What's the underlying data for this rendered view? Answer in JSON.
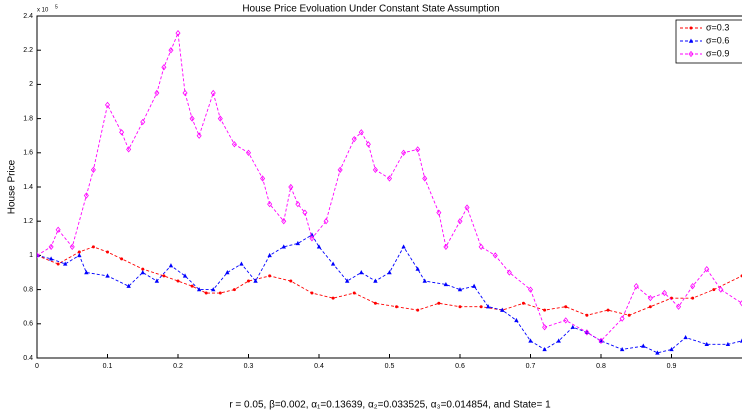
{
  "chart_data": {
    "type": "line",
    "title": "House Price Evoluation Under Constant State Assumption",
    "ylabel": "House Price",
    "xlabel": "r = 0.05, β=0.002, α₁=0.13639, α₂=0.033525, α₃=0.014854, and State= 1",
    "y_scale": {
      "base": "x 10",
      "exponent": "5"
    },
    "xlim": [
      0,
      1
    ],
    "xticks": [
      0,
      0.1,
      0.2,
      0.3,
      0.4,
      0.5,
      0.6,
      0.7,
      0.8,
      0.9
    ],
    "ylim": [
      0.4,
      2.4
    ],
    "yticks": [
      0.4,
      0.6,
      0.8,
      1,
      1.2,
      1.4,
      1.6,
      1.8,
      2,
      2.2,
      2.4
    ],
    "legend": "upper right",
    "series": [
      {
        "name": "σ=0.3",
        "color": "#ff0000",
        "marker": "dot",
        "x": [
          0,
          0.03,
          0.06,
          0.08,
          0.1,
          0.12,
          0.15,
          0.18,
          0.2,
          0.22,
          0.24,
          0.26,
          0.28,
          0.3,
          0.33,
          0.36,
          0.39,
          0.42,
          0.45,
          0.48,
          0.51,
          0.54,
          0.57,
          0.6,
          0.63,
          0.66,
          0.69,
          0.72,
          0.75,
          0.78,
          0.81,
          0.84,
          0.87,
          0.9,
          0.93,
          0.96,
          1.0
        ],
        "values": [
          1.0,
          0.95,
          1.02,
          1.05,
          1.02,
          0.98,
          0.92,
          0.88,
          0.85,
          0.82,
          0.78,
          0.78,
          0.8,
          0.85,
          0.88,
          0.85,
          0.78,
          0.75,
          0.78,
          0.72,
          0.7,
          0.68,
          0.72,
          0.7,
          0.7,
          0.68,
          0.72,
          0.68,
          0.7,
          0.65,
          0.68,
          0.65,
          0.7,
          0.75,
          0.75,
          0.8,
          0.88
        ]
      },
      {
        "name": "σ=0.6",
        "color": "#0000ff",
        "marker": "triangle",
        "x": [
          0,
          0.02,
          0.04,
          0.06,
          0.07,
          0.1,
          0.13,
          0.15,
          0.17,
          0.19,
          0.21,
          0.23,
          0.25,
          0.27,
          0.29,
          0.31,
          0.33,
          0.35,
          0.37,
          0.39,
          0.4,
          0.42,
          0.44,
          0.46,
          0.48,
          0.5,
          0.52,
          0.54,
          0.55,
          0.58,
          0.6,
          0.62,
          0.64,
          0.66,
          0.68,
          0.7,
          0.72,
          0.74,
          0.76,
          0.78,
          0.8,
          0.83,
          0.86,
          0.88,
          0.9,
          0.92,
          0.95,
          0.98,
          1.0
        ],
        "values": [
          1.0,
          0.98,
          0.95,
          1.0,
          0.9,
          0.88,
          0.82,
          0.9,
          0.85,
          0.94,
          0.88,
          0.8,
          0.8,
          0.9,
          0.95,
          0.85,
          1.0,
          1.05,
          1.07,
          1.12,
          1.05,
          0.95,
          0.85,
          0.9,
          0.85,
          0.9,
          1.05,
          0.92,
          0.85,
          0.83,
          0.8,
          0.82,
          0.7,
          0.68,
          0.62,
          0.5,
          0.45,
          0.5,
          0.58,
          0.55,
          0.5,
          0.45,
          0.47,
          0.43,
          0.45,
          0.52,
          0.48,
          0.48,
          0.5
        ]
      },
      {
        "name": "σ=0.9",
        "color": "#ff00ff",
        "marker": "diamond",
        "x": [
          0,
          0.02,
          0.03,
          0.05,
          0.07,
          0.08,
          0.1,
          0.12,
          0.13,
          0.15,
          0.17,
          0.18,
          0.19,
          0.2,
          0.21,
          0.22,
          0.23,
          0.25,
          0.26,
          0.28,
          0.3,
          0.32,
          0.33,
          0.35,
          0.36,
          0.37,
          0.38,
          0.39,
          0.41,
          0.43,
          0.45,
          0.46,
          0.47,
          0.48,
          0.5,
          0.52,
          0.54,
          0.55,
          0.57,
          0.58,
          0.6,
          0.61,
          0.63,
          0.65,
          0.67,
          0.7,
          0.72,
          0.75,
          0.78,
          0.8,
          0.83,
          0.85,
          0.87,
          0.89,
          0.91,
          0.93,
          0.95,
          0.97,
          1.0
        ],
        "values": [
          1.0,
          1.05,
          1.15,
          1.05,
          1.35,
          1.5,
          1.88,
          1.72,
          1.62,
          1.78,
          1.95,
          2.1,
          2.2,
          2.3,
          1.95,
          1.8,
          1.7,
          1.95,
          1.8,
          1.65,
          1.6,
          1.45,
          1.3,
          1.2,
          1.4,
          1.3,
          1.25,
          1.1,
          1.2,
          1.5,
          1.68,
          1.72,
          1.65,
          1.5,
          1.45,
          1.6,
          1.62,
          1.45,
          1.25,
          1.05,
          1.2,
          1.28,
          1.05,
          1.0,
          0.9,
          0.8,
          0.58,
          0.62,
          0.55,
          0.5,
          0.63,
          0.82,
          0.75,
          0.78,
          0.7,
          0.82,
          0.92,
          0.8,
          0.72
        ]
      }
    ]
  }
}
